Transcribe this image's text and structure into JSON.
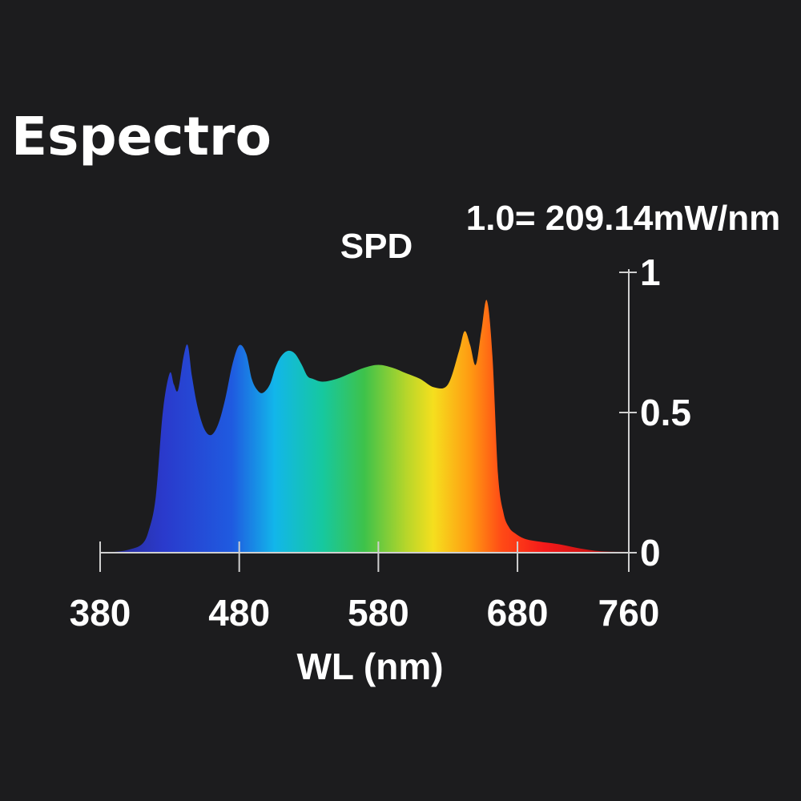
{
  "page": {
    "title": "Espectro"
  },
  "chart_data": {
    "type": "area",
    "title": "SPD",
    "scale_note": "1.0= 209.14mW/nm",
    "xlabel": "WL (nm)",
    "ylabel": "",
    "xlim": [
      380,
      760
    ],
    "ylim": [
      0,
      1
    ],
    "x_ticks": [
      380,
      480,
      580,
      680,
      760
    ],
    "y_ticks": [
      0,
      0.5,
      1
    ],
    "y_tick_labels": [
      "0",
      "0.5",
      "1"
    ],
    "fill": "visible-spectrum gradient",
    "grid": false,
    "legend": "none",
    "series": [
      {
        "x": [
          380,
          390,
          400,
          410,
          415,
          420,
          425,
          430,
          433,
          436,
          440,
          443,
          446,
          450,
          455,
          460,
          465,
          470,
          475,
          480,
          485,
          489,
          493,
          497,
          502,
          506,
          510,
          515,
          520,
          525,
          529,
          533,
          540,
          550,
          560,
          570,
          580,
          590,
          600,
          610,
          620,
          630,
          638,
          642,
          646,
          650,
          654,
          658,
          662,
          666,
          670,
          674,
          678,
          685,
          695,
          710,
          725,
          740,
          760
        ],
        "y": [
          0,
          0.003,
          0.01,
          0.03,
          0.08,
          0.2,
          0.5,
          0.64,
          0.6,
          0.58,
          0.7,
          0.74,
          0.63,
          0.52,
          0.44,
          0.42,
          0.46,
          0.55,
          0.67,
          0.74,
          0.71,
          0.62,
          0.58,
          0.57,
          0.6,
          0.66,
          0.7,
          0.72,
          0.71,
          0.67,
          0.63,
          0.62,
          0.61,
          0.62,
          0.64,
          0.66,
          0.67,
          0.66,
          0.64,
          0.62,
          0.59,
          0.6,
          0.72,
          0.79,
          0.74,
          0.67,
          0.79,
          0.9,
          0.7,
          0.28,
          0.14,
          0.09,
          0.07,
          0.05,
          0.04,
          0.03,
          0.015,
          0.005,
          0.003
        ]
      }
    ]
  },
  "colors": {
    "background": "#1c1c1e",
    "text": "#ffffff",
    "axis": "#cfcfcf"
  }
}
